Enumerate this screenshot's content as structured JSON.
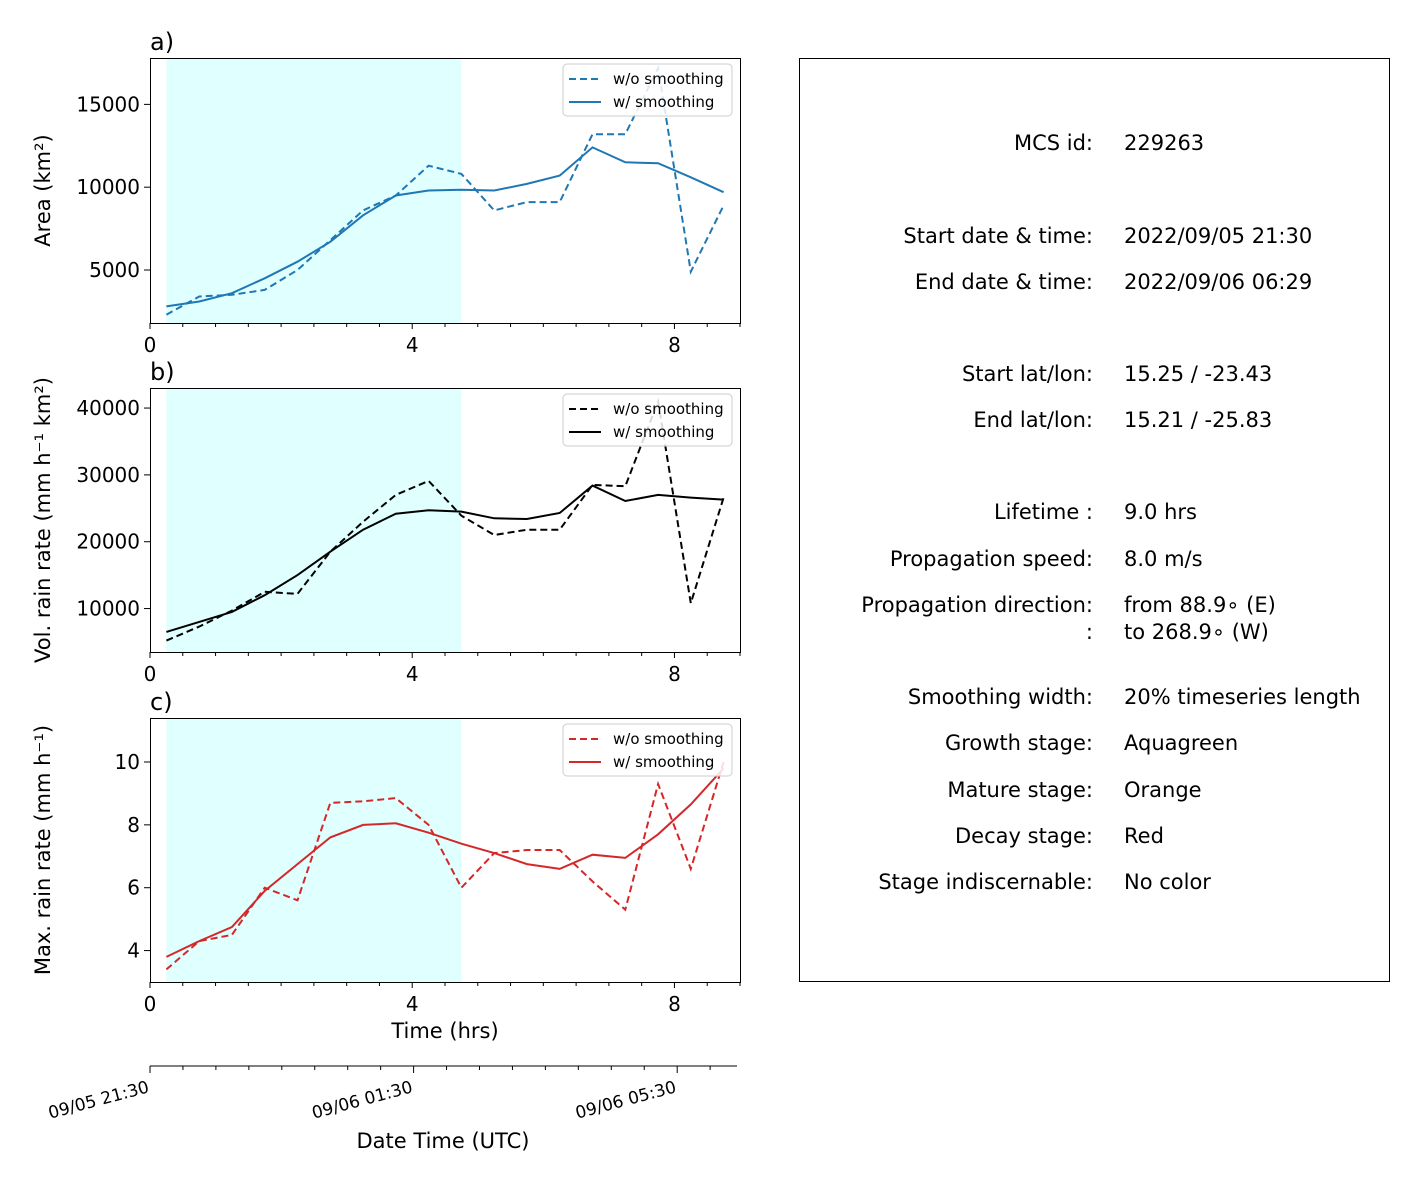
{
  "chart_data": [
    {
      "type": "line",
      "panel_label": "a)",
      "ylabel": "Area  (km²)",
      "xlim": [
        0,
        9
      ],
      "ylim": [
        1800,
        17800
      ],
      "xticks": [
        0,
        4,
        8
      ],
      "yticks": [
        5000,
        10000,
        15000
      ],
      "tick_labels_x": [
        "0",
        "4",
        "8"
      ],
      "tick_labels_y": [
        "5000",
        "10000",
        "15000"
      ],
      "legend_placement": "top-right",
      "color": "#1f77b4",
      "shaded_stage": {
        "name": "Growth stage",
        "color": "#e0ffff",
        "x_range": [
          0.25,
          4.75
        ]
      },
      "x": [
        0.25,
        0.75,
        1.25,
        1.75,
        2.25,
        2.75,
        3.25,
        3.75,
        4.25,
        4.75,
        5.25,
        5.75,
        6.25,
        6.75,
        7.25,
        7.75,
        8.25,
        8.75
      ],
      "series": [
        {
          "name": "w/o smoothing",
          "style": "dashed",
          "values": [
            2300,
            3400,
            3500,
            3800,
            5000,
            6800,
            8600,
            9500,
            11300,
            10800,
            8600,
            9100,
            9100,
            13200,
            13200,
            17200,
            4900,
            8900
          ]
        },
        {
          "name": "w/ smoothing",
          "style": "solid",
          "values": [
            2800,
            3100,
            3600,
            4500,
            5500,
            6700,
            8300,
            9500,
            9800,
            9850,
            9800,
            10200,
            10700,
            12400,
            11500,
            11450,
            10600,
            9700
          ]
        }
      ]
    },
    {
      "type": "line",
      "panel_label": "b)",
      "ylabel": "Vol. rain rate (mm h⁻¹ km²)",
      "xlim": [
        0,
        9
      ],
      "ylim": [
        3500,
        43000
      ],
      "xticks": [
        0,
        4,
        8
      ],
      "yticks": [
        10000,
        20000,
        30000,
        40000
      ],
      "tick_labels_x": [
        "0",
        "4",
        "8"
      ],
      "tick_labels_y": [
        "10000",
        "20000",
        "30000",
        "40000"
      ],
      "legend_placement": "top-right",
      "color": "#000000",
      "shaded_stage": {
        "name": "Growth stage",
        "color": "#e0ffff",
        "x_range": [
          0.25,
          4.75
        ]
      },
      "x": [
        0.25,
        0.75,
        1.25,
        1.75,
        2.25,
        2.75,
        3.25,
        3.75,
        4.25,
        4.75,
        5.25,
        5.75,
        6.25,
        6.75,
        7.25,
        7.75,
        8.25,
        8.75
      ],
      "series": [
        {
          "name": "w/o smoothing",
          "style": "dashed",
          "values": [
            5200,
            7300,
            9700,
            12500,
            12200,
            18500,
            23000,
            27000,
            29100,
            23900,
            21000,
            21800,
            21800,
            28500,
            28300,
            41000,
            10800,
            26600
          ]
        },
        {
          "name": "w/ smoothing",
          "style": "solid",
          "values": [
            6500,
            8000,
            9500,
            12000,
            15000,
            18500,
            21800,
            24200,
            24700,
            24500,
            23500,
            23400,
            24300,
            28400,
            26100,
            27000,
            26600,
            26300
          ]
        }
      ]
    },
    {
      "type": "line",
      "panel_label": "c)",
      "ylabel": "Max. rain rate  (mm h⁻¹)",
      "xlabel": "Time (hrs)",
      "xlim": [
        0,
        9
      ],
      "ylim": [
        3.0,
        11.4
      ],
      "xticks": [
        0,
        4,
        8
      ],
      "yticks": [
        4,
        6,
        8,
        10
      ],
      "tick_labels_x": [
        "0",
        "4",
        "8"
      ],
      "tick_labels_y": [
        "4",
        "6",
        "8",
        "10"
      ],
      "legend_placement": "top-right",
      "color": "#d62728",
      "shaded_stage": {
        "name": "Growth stage",
        "color": "#e0ffff",
        "x_range": [
          0.25,
          4.75
        ]
      },
      "x": [
        0.25,
        0.75,
        1.25,
        1.75,
        2.25,
        2.75,
        3.25,
        3.75,
        4.25,
        4.75,
        5.25,
        5.75,
        6.25,
        6.75,
        7.25,
        7.75,
        8.25,
        8.75
      ],
      "series": [
        {
          "name": "w/o smoothing",
          "style": "dashed",
          "values": [
            3.4,
            4.3,
            4.5,
            6.0,
            5.6,
            8.7,
            8.75,
            8.85,
            8.0,
            6.0,
            7.1,
            7.2,
            7.2,
            6.2,
            5.3,
            9.3,
            6.6,
            10.0
          ]
        },
        {
          "name": "w/ smoothing",
          "style": "solid",
          "values": [
            3.8,
            4.3,
            4.75,
            5.9,
            6.75,
            7.6,
            8.0,
            8.05,
            7.75,
            7.4,
            7.1,
            6.75,
            6.6,
            7.05,
            6.95,
            7.7,
            8.65,
            9.8
          ]
        }
      ]
    }
  ],
  "datetime_axis": {
    "xlabel": "Date Time (UTC)",
    "tick_labels": [
      "09/05 21:30",
      "09/06 01:30",
      "09/06 05:30"
    ]
  },
  "info": {
    "rows": [
      {
        "label": "MCS id:",
        "value": "229263"
      },
      {
        "label": "Start date & time:",
        "value": "2022/09/05 21:30"
      },
      {
        "label": "End date & time:",
        "value": "2022/09/06 06:29"
      },
      {
        "label": "Start lat/lon:",
        "value": "15.25 / -23.43"
      },
      {
        "label": "End lat/lon:",
        "value": "15.21 / -25.83"
      },
      {
        "label": "Lifetime :",
        "value": "9.0 hrs"
      },
      {
        "label": "Propagation speed:",
        "value": "8.0 m/s"
      },
      {
        "label": "Propagation direction:",
        "value": "from  88.9∘ (E)"
      },
      {
        "label": ":",
        "value": "to   268.9∘ (W)"
      },
      {
        "label": "Smoothing width:",
        "value": "20% timeseries length"
      },
      {
        "label": "Growth stage:",
        "value": "Aquagreen"
      },
      {
        "label": "Mature stage:",
        "value": "Orange"
      },
      {
        "label": "Decay stage:",
        "value": "Red"
      },
      {
        "label": "Stage indiscernable:",
        "value": "No color"
      }
    ]
  }
}
